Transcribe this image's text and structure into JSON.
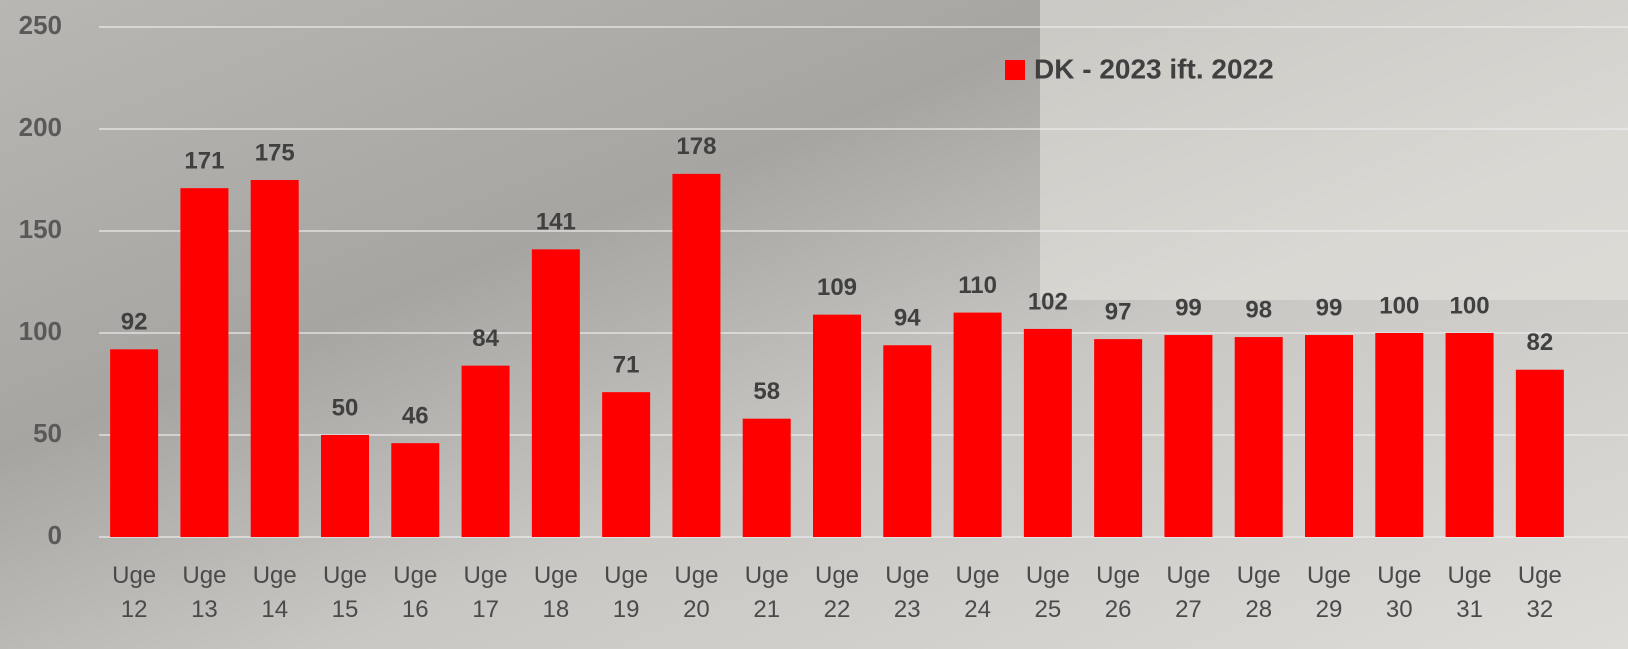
{
  "chart_data": {
    "type": "bar",
    "categories": [
      "Uge 12",
      "Uge 13",
      "Uge 14",
      "Uge 15",
      "Uge 16",
      "Uge 17",
      "Uge 18",
      "Uge 19",
      "Uge 20",
      "Uge 21",
      "Uge 22",
      "Uge 23",
      "Uge 24",
      "Uge 25",
      "Uge 26",
      "Uge 27",
      "Uge 28",
      "Uge 29",
      "Uge 30",
      "Uge 31",
      "Uge 32"
    ],
    "series": [
      {
        "name": "DK - 2023 ift. 2022",
        "color": "#ff0000",
        "values": [
          92,
          171,
          175,
          50,
          46,
          84,
          141,
          71,
          178,
          58,
          109,
          94,
          110,
          102,
          97,
          99,
          98,
          99,
          100,
          100,
          82
        ]
      }
    ],
    "ylim": [
      0,
      250
    ],
    "yticks": [
      0,
      50,
      100,
      150,
      200,
      250
    ],
    "grid": true,
    "legend": "top-right"
  }
}
